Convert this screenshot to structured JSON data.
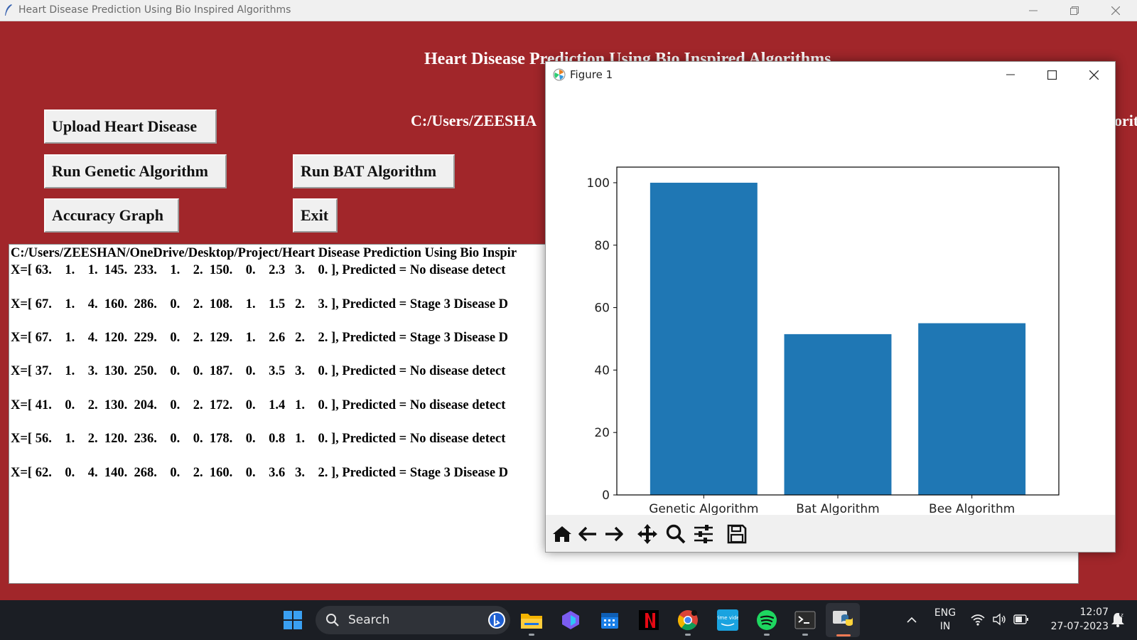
{
  "main_window": {
    "title": "Heart Disease Prediction Using Bio Inspired Algorithms",
    "heading": "Heart Disease Prediction Using Bio Inspired Algorithms",
    "path_label": "C:/Users/ZEESHA",
    "path_label_tail": "orit"
  },
  "buttons": {
    "upload": "Upload Heart Disease",
    "genetic": "Run Genetic Algorithm",
    "bat": "Run BAT Algorithm",
    "accuracy": "Accuracy Graph",
    "exit": "Exit"
  },
  "output": {
    "lines": [
      "C:/Users/ZEESHAN/OneDrive/Desktop/Project/Heart Disease Prediction Using Bio Inspir",
      "X=[ 63.    1.    1.  145.  233.    1.    2.  150.    0.    2.3   3.    0. ], Predicted = No disease detect",
      "X=[ 67.    1.    4.  160.  286.    0.    2.  108.    1.    1.5   2.    3. ], Predicted = Stage 3 Disease D",
      "X=[ 67.    1.    4.  120.  229.    0.    2.  129.    1.    2.6   2.    2. ], Predicted = Stage 3 Disease D",
      "X=[ 37.    1.    3.  130.  250.    0.    0.  187.    0.    3.5   3.    0. ], Predicted = No disease detect",
      "X=[ 41.    0.    2.  130.  204.    0.    2.  172.    0.    1.4   1.    0. ], Predicted = No disease detect",
      "X=[ 56.    1.    2.  120.  236.    0.    0.  178.    0.    0.8   1.    0. ], Predicted = No disease detect",
      "X=[ 62.    0.    4.  140.  268.    0.    2.  160.    0.    3.6   3.    2. ], Predicted = Stage 3 Disease D"
    ]
  },
  "figure": {
    "title": "Figure 1",
    "toolbar": [
      "home-icon",
      "back-arrow-icon",
      "forward-arrow-icon",
      "pan-icon",
      "zoom-icon",
      "configure-subplots-icon",
      "save-icon"
    ]
  },
  "chart_data": {
    "type": "bar",
    "categories": [
      "Genetic Algorithm",
      "Bat Algorithm",
      "Bee Algorithm"
    ],
    "values": [
      100,
      51.5,
      55
    ],
    "ylim": [
      0,
      105
    ],
    "yticks": [
      0,
      20,
      40,
      60,
      80,
      100
    ],
    "bar_color": "#1f77b4",
    "title": "",
    "xlabel": "",
    "ylabel": ""
  },
  "taskbar": {
    "search_placeholder": "Search",
    "lang_top": "ENG",
    "lang_bottom": "IN",
    "time": "12:07",
    "date": "27-07-2023",
    "apps": [
      "windows-start-icon",
      "bing-icon",
      "file-explorer-icon",
      "copilot-icon",
      "calendar-icon",
      "netflix-icon",
      "chrome-icon",
      "prime-video-icon",
      "spotify-icon",
      "terminal-icon",
      "python-icon"
    ],
    "prime_text": "prime video"
  },
  "colors": {
    "app_background": "#a1262a",
    "bar": "#1f77b4",
    "taskbar": "#1b1e24"
  }
}
